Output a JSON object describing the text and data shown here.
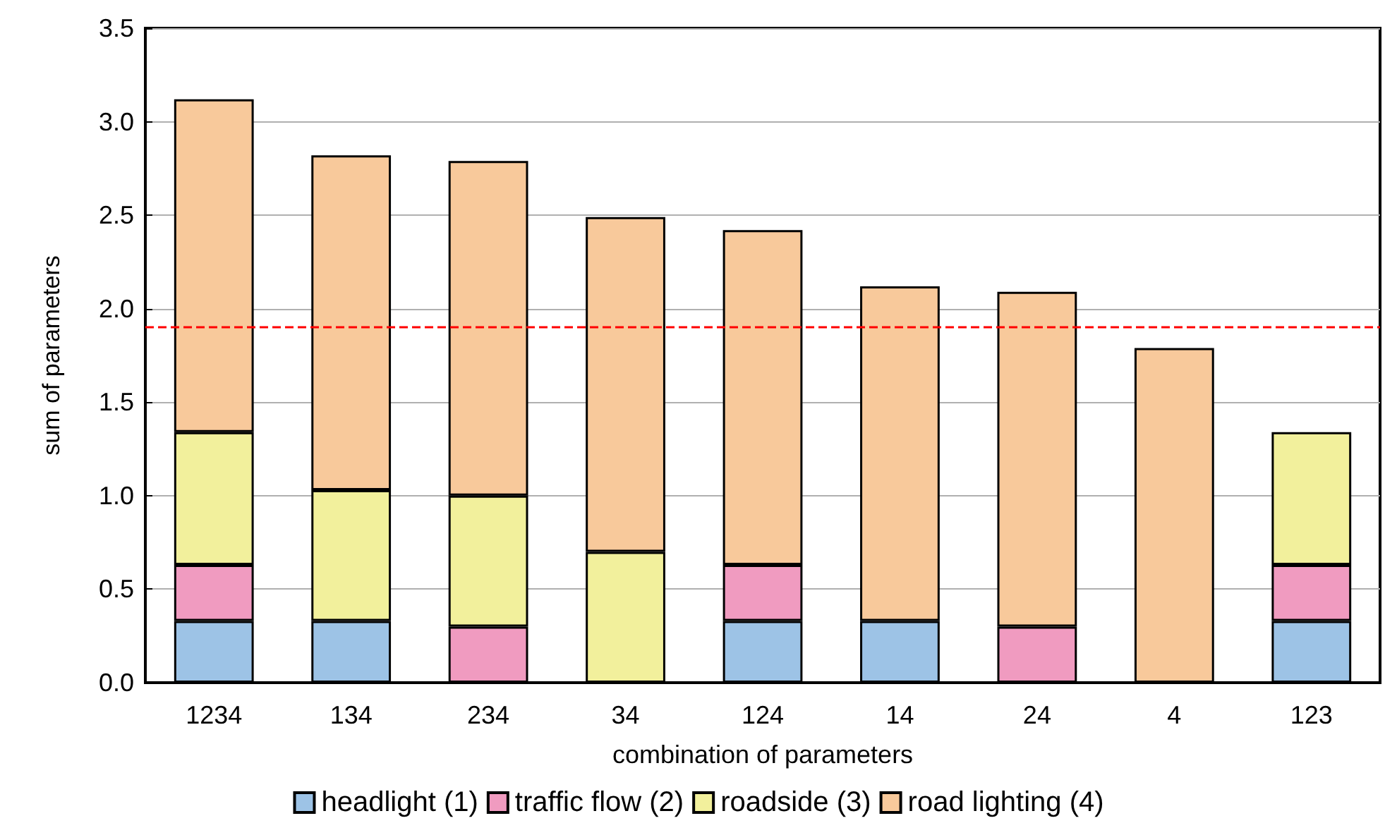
{
  "chart_data": {
    "type": "bar",
    "stacked": true,
    "xlabel": "combination of parameters",
    "ylabel": "sum of parameters",
    "categories": [
      "1234",
      "134",
      "234",
      "34",
      "124",
      "14",
      "24",
      "4",
      "123"
    ],
    "series": [
      {
        "name": "headlight (1)",
        "color": "#9dc3e6",
        "values": [
          0.33,
          0.33,
          null,
          null,
          0.33,
          0.33,
          null,
          null,
          0.33
        ]
      },
      {
        "name": "traffic flow (2)",
        "color": "#f09bc0",
        "values": [
          0.3,
          null,
          0.3,
          null,
          0.3,
          null,
          0.3,
          null,
          0.3
        ]
      },
      {
        "name": "roadside (3)",
        "color": "#f2f09c",
        "values": [
          0.71,
          0.7,
          0.7,
          0.7,
          null,
          null,
          null,
          null,
          0.71
        ]
      },
      {
        "name": "road lighting (4)",
        "color": "#f8c99b",
        "values": [
          1.78,
          1.79,
          1.79,
          1.79,
          1.79,
          1.79,
          1.79,
          1.79,
          null
        ]
      }
    ],
    "ylim": [
      0,
      3.5
    ],
    "yticks": [
      {
        "value": 0,
        "label": "0.0"
      },
      {
        "value": 0.5,
        "label": "0.5"
      },
      {
        "value": 1,
        "label": "1.0"
      },
      {
        "value": 1.5,
        "label": "1.5"
      },
      {
        "value": 2,
        "label": "2.0"
      },
      {
        "value": 2.5,
        "label": "2.5"
      },
      {
        "value": 3,
        "label": "3.0"
      },
      {
        "value": 3.5,
        "label": "3.5"
      }
    ],
    "grid": "y",
    "legend": "bottom",
    "ref_lines": [
      {
        "axis": "y",
        "value": 1.9,
        "color": "#ff0000",
        "line_style": "dashed"
      }
    ]
  }
}
